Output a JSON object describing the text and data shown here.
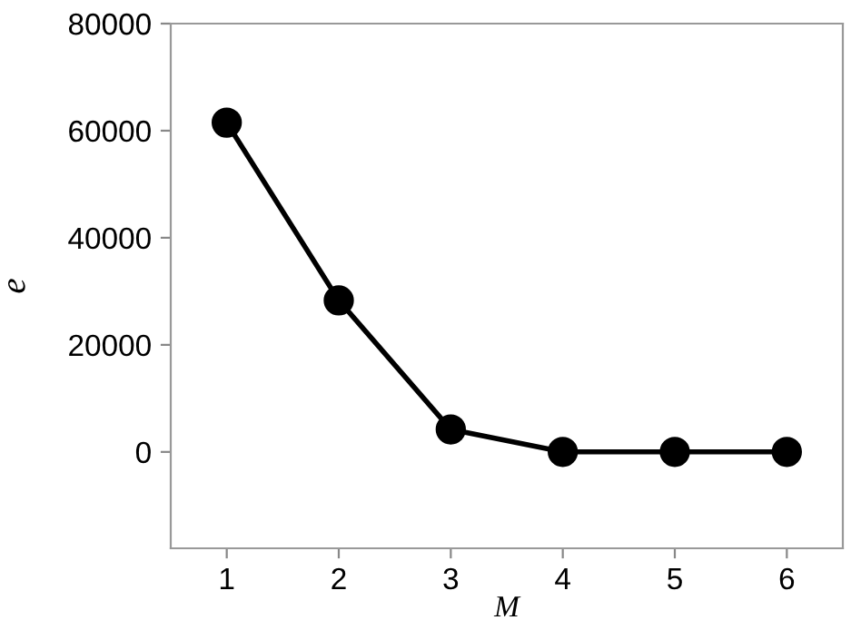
{
  "chart_data": {
    "type": "line",
    "xlabel": "M",
    "ylabel": "e",
    "x": [
      1,
      2,
      3,
      4,
      5,
      6
    ],
    "series": [
      {
        "color": "#000000",
        "values": [
          61500,
          28300,
          4200,
          0,
          0,
          0
        ]
      }
    ],
    "xlim": [
      0.5,
      6.5
    ],
    "xticks": [
      1,
      2,
      3,
      4,
      5,
      6
    ],
    "ylim": [
      -18000,
      80000
    ],
    "yticks": [
      0,
      20000,
      40000,
      60000,
      80000
    ],
    "marker": "circle",
    "line_style": "solid",
    "grid": false,
    "legend": false
  }
}
